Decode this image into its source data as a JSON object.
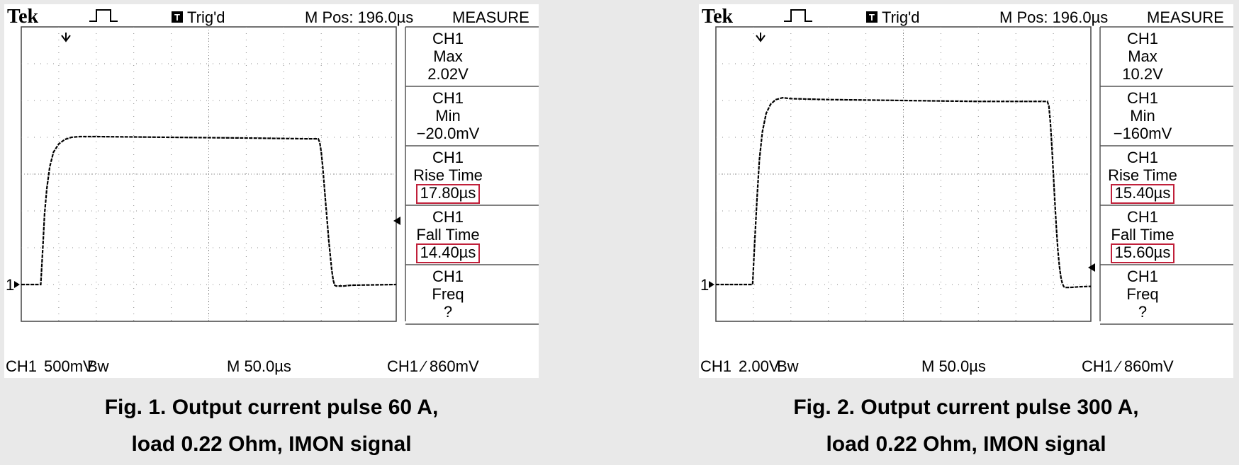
{
  "chart_data": [
    {
      "type": "line",
      "scope_header": {
        "brand": "Tek",
        "trigger_status": "Trig'd",
        "m_pos": "M Pos: 196.0µs"
      },
      "scope_footer": {
        "channel": "CH1",
        "scale": "500mV",
        "bw_mark": "Bw",
        "timebase": "M 50.0µs",
        "trigger": "CH1 ∕ 860mV"
      },
      "measure": {
        "title": "MEASURE",
        "items": [
          {
            "ch": "CH1",
            "label": "Max",
            "value": "2.02V",
            "boxed": false
          },
          {
            "ch": "CH1",
            "label": "Min",
            "value": "−20.0mV",
            "boxed": false
          },
          {
            "ch": "CH1",
            "label": "Rise Time",
            "value": "17.80µs",
            "boxed": true
          },
          {
            "ch": "CH1",
            "label": "Fall Time",
            "value": "14.40µs",
            "boxed": true
          },
          {
            "ch": "CH1",
            "label": "Freq",
            "value": "?",
            "boxed": false
          }
        ]
      },
      "caption_line1": "Fig. 1. Output current pulse 60 A,",
      "caption_line2": "load 0.22 Ohm, IMON signal",
      "x_unit": "µs",
      "y_unit": "V",
      "xlim": [
        0,
        500
      ],
      "ylim": [
        -0.5,
        3.5
      ],
      "grid": true,
      "ground_marker": "1",
      "x": [
        0,
        26,
        29,
        31,
        34,
        38,
        43,
        50,
        58,
        67,
        78,
        100,
        200,
        300,
        380,
        396,
        398,
        400,
        402,
        404,
        406,
        408,
        410,
        412,
        414,
        416,
        418,
        420,
        424,
        430,
        440,
        500
      ],
      "y": [
        0,
        0,
        0.55,
        0.95,
        1.3,
        1.6,
        1.8,
        1.91,
        1.97,
        2.0,
        2.01,
        2.01,
        2.0,
        1.99,
        1.98,
        1.98,
        1.93,
        1.8,
        1.6,
        1.35,
        1.1,
        0.85,
        0.6,
        0.4,
        0.2,
        0.06,
        -0.01,
        -0.02,
        -0.02,
        -0.02,
        -0.01,
        0
      ]
    },
    {
      "type": "line",
      "scope_header": {
        "brand": "Tek",
        "trigger_status": "Trig'd",
        "m_pos": "M Pos: 196.0µs"
      },
      "scope_footer": {
        "channel": "CH1",
        "scale": "2.00V",
        "bw_mark": "Bw",
        "timebase": "M 50.0µs",
        "trigger": "CH1 ∕ 860mV"
      },
      "measure": {
        "title": "MEASURE",
        "items": [
          {
            "ch": "CH1",
            "label": "Max",
            "value": "10.2V",
            "boxed": false
          },
          {
            "ch": "CH1",
            "label": "Min",
            "value": "−160mV",
            "boxed": false
          },
          {
            "ch": "CH1",
            "label": "Rise Time",
            "value": "15.40µs",
            "boxed": true
          },
          {
            "ch": "CH1",
            "label": "Fall Time",
            "value": "15.60µs",
            "boxed": true
          },
          {
            "ch": "CH1",
            "label": "Freq",
            "value": "?",
            "boxed": false
          }
        ]
      },
      "caption_line1": "Fig. 2. Output current pulse 300 A,",
      "caption_line2": "load 0.22 Ohm, IMON signal",
      "x_unit": "µs",
      "y_unit": "V",
      "xlim": [
        0,
        500
      ],
      "ylim": [
        -2,
        14
      ],
      "grid": true,
      "ground_marker": "1",
      "x": [
        0,
        49,
        52,
        55,
        58,
        62,
        67,
        73,
        80,
        89,
        100,
        150,
        250,
        350,
        442,
        444,
        446,
        448,
        450,
        452,
        454,
        456,
        458,
        460,
        462,
        464,
        466,
        470,
        476,
        486,
        500
      ],
      "y": [
        0,
        0,
        2.5,
        4.8,
        6.8,
        8.3,
        9.3,
        9.8,
        10.05,
        10.15,
        10.1,
        10.05,
        10.0,
        9.95,
        9.95,
        9.7,
        8.8,
        7.5,
        6.0,
        4.5,
        3.1,
        1.9,
        1.0,
        0.4,
        0.05,
        -0.12,
        -0.16,
        -0.16,
        -0.15,
        -0.12,
        -0.1
      ]
    }
  ]
}
